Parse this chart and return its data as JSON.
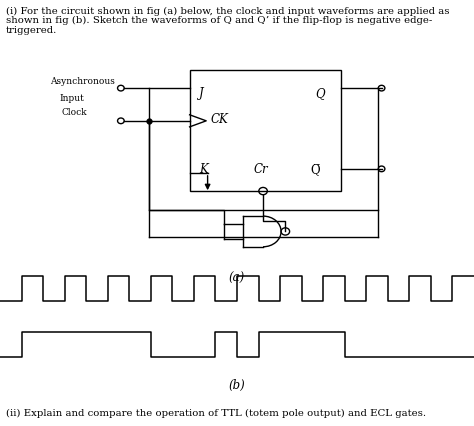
{
  "title_line1": "(i) For the circuit shown in fig (a) below, the clock and input waveforms are applied as",
  "title_line2": "shown in fig (b). Sketch the waveforms of Q and Q’ if the flip-flop is negative edge-",
  "title_line3": "triggered.",
  "fig_a_label": "(a)",
  "fig_b_label": "(b)",
  "footer_text": "(ii) Explain and compare the operation of TTL (totem pole output) and ECL gates.",
  "clock_label": "Clock",
  "input_label": "Input",
  "async_label_line1": "Asynchronous",
  "async_label_line2": "Input",
  "clock_circ_label": "Clock",
  "J_label": "J",
  "Q_label": "Q",
  "CK_label": "CK",
  "K_label": "K",
  "Cr_label": "Cr",
  "Qbar_label": "Q̅",
  "bg_color": "#ffffff",
  "lc": "#000000",
  "clock_waveform": [
    0,
    0,
    1,
    1,
    0,
    0,
    1,
    1,
    0,
    0,
    1,
    1,
    0,
    0,
    1,
    1,
    0,
    0,
    1,
    1,
    0,
    0,
    1,
    1,
    0,
    0,
    1,
    1,
    0,
    0,
    1,
    1,
    0,
    0,
    1,
    1,
    0,
    0,
    1,
    1,
    0,
    0,
    1,
    1
  ],
  "input_waveform": [
    0,
    0,
    1,
    1,
    1,
    1,
    1,
    1,
    1,
    1,
    1,
    1,
    1,
    1,
    0,
    0,
    0,
    0,
    0,
    0,
    1,
    1,
    0,
    0,
    1,
    1,
    1,
    1,
    1,
    1,
    1,
    1,
    0,
    0,
    0,
    0,
    0,
    0,
    0,
    0,
    0,
    0,
    0,
    0
  ]
}
